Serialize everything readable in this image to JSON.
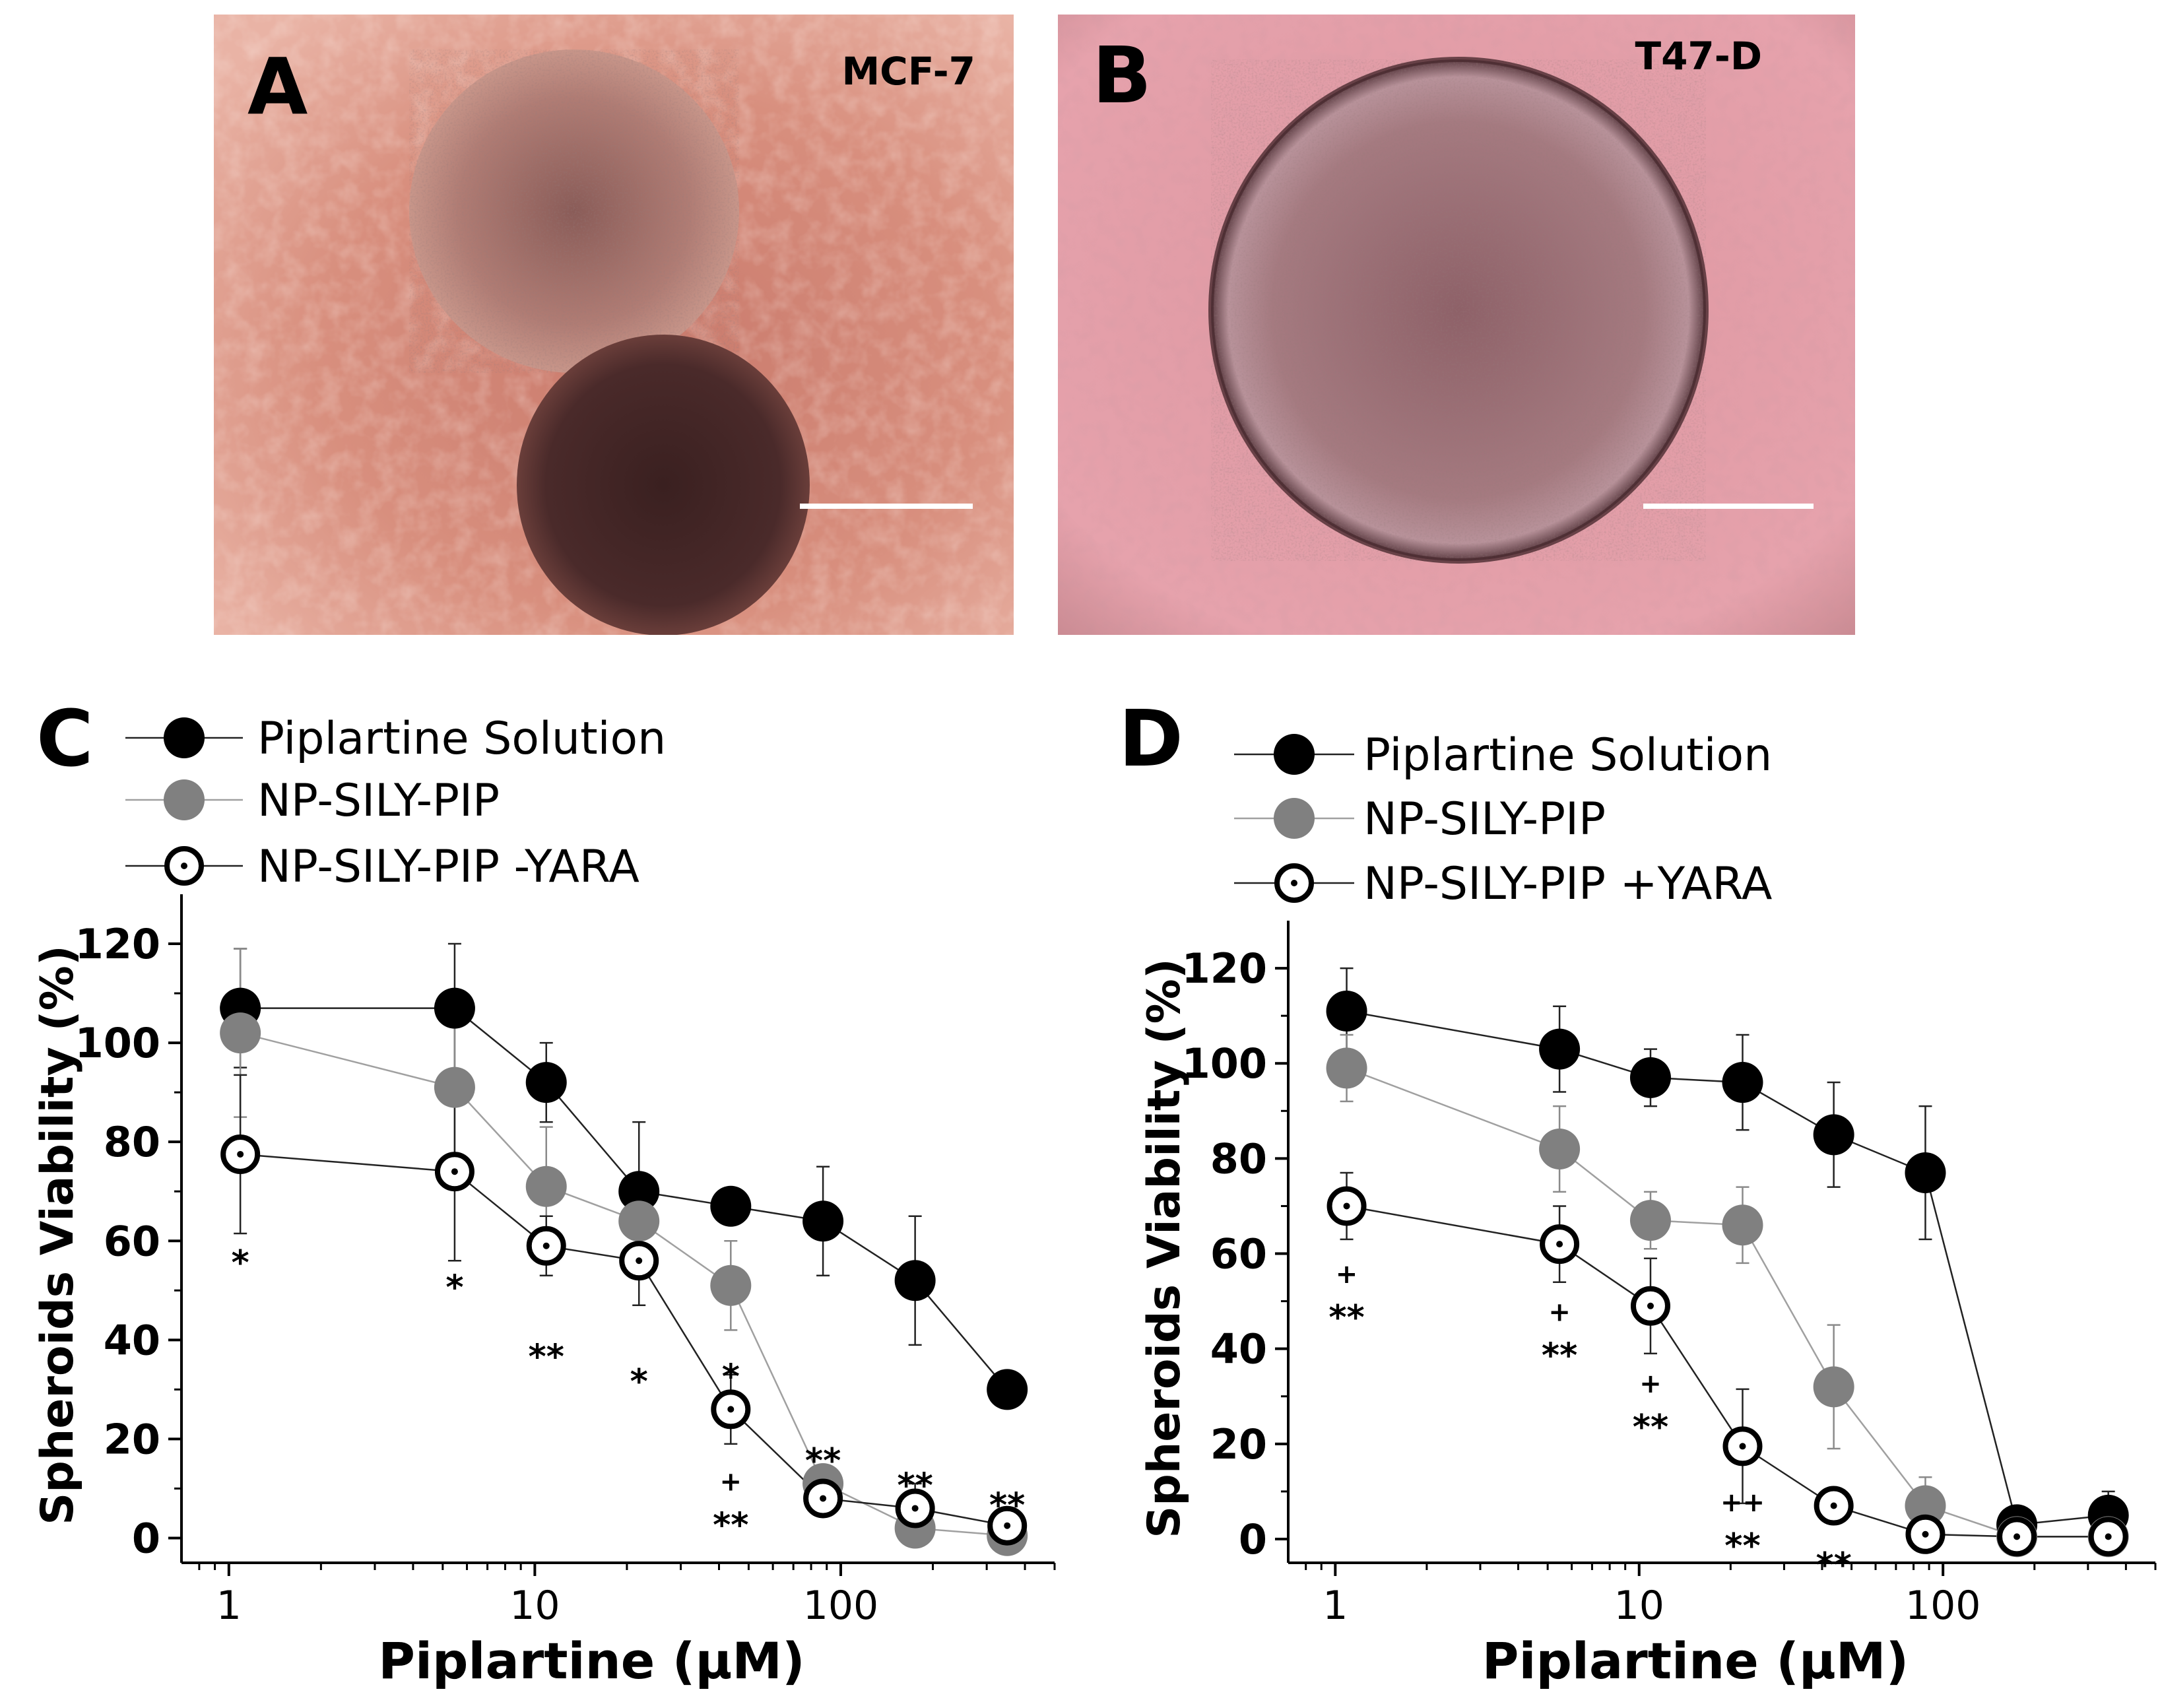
{
  "panels": {
    "A": {
      "letter": "A",
      "cell_line": "MCF-7"
    },
    "B": {
      "letter": "B",
      "cell_line": "T47-D"
    },
    "C": {
      "letter": "C"
    },
    "D": {
      "letter": "D"
    }
  },
  "colors": {
    "panel_a_bg": "#d98a78",
    "panel_a_dark": "#3e2222",
    "panel_b_bg": "#e29aa4",
    "panel_b_spheroid": "#a07880",
    "solution": "#000000",
    "np": "#808080",
    "np_yara_edge": "#000000"
  },
  "chart_data": [
    {
      "panel": "C",
      "type": "scatter",
      "xscale": "log",
      "xlabel": "Piplartine (μM)",
      "ylabel": "Spheroids Viability (%)",
      "xlim": [
        0.7,
        500
      ],
      "ylim": [
        -5,
        130
      ],
      "xticks": [
        "1",
        "10",
        "100"
      ],
      "yticks": [
        "0",
        "20",
        "40",
        "60",
        "80",
        "100",
        "120"
      ],
      "series": [
        {
          "name": "Piplartine Solution",
          "marker": "filled-black",
          "x": [
            1.09,
            5.47,
            10.9,
            21.9,
            43.7,
            87.5,
            175,
            350
          ],
          "y": [
            107,
            107,
            92,
            70,
            67,
            64,
            52,
            30
          ],
          "err": [
            12,
            13,
            8,
            14,
            0,
            11,
            13,
            0
          ]
        },
        {
          "name": "NP-SILY-PIP",
          "marker": "filled-gray",
          "x": [
            1.09,
            5.47,
            10.9,
            21.9,
            43.7,
            87.5,
            175,
            350
          ],
          "y": [
            102,
            91,
            71,
            64,
            51,
            11,
            2,
            0.5
          ],
          "err": [
            17,
            15,
            12,
            7,
            9,
            2,
            2,
            2
          ]
        },
        {
          "name": "NP-SILY-PIP -YARA",
          "marker": "open-dot",
          "x": [
            1.09,
            5.47,
            10.9,
            21.9,
            43.7,
            87.5,
            175,
            350
          ],
          "y": [
            77.5,
            74,
            59,
            56,
            26,
            8,
            6,
            2.5
          ],
          "err": [
            16,
            18,
            6,
            9,
            7,
            2,
            5,
            3
          ]
        }
      ],
      "annotations": [
        {
          "x": 1.09,
          "y": 57,
          "lines": [
            "*"
          ]
        },
        {
          "x": 5.47,
          "y": 52,
          "lines": [
            "*"
          ]
        },
        {
          "x": 10.9,
          "y": 38,
          "lines": [
            "**"
          ]
        },
        {
          "x": 21.9,
          "y": 33,
          "lines": [
            "*"
          ]
        },
        {
          "x": 43.7,
          "y": 34,
          "lines": [
            "*"
          ]
        },
        {
          "x": 43.7,
          "y": 4,
          "lines": [
            "+",
            "**"
          ]
        },
        {
          "x": 87.5,
          "y": 17,
          "lines": [
            "**"
          ]
        },
        {
          "x": 175,
          "y": 12,
          "lines": [
            "**"
          ]
        },
        {
          "x": 350,
          "y": 8,
          "lines": [
            "**"
          ]
        }
      ]
    },
    {
      "panel": "D",
      "type": "scatter",
      "xscale": "log",
      "xlabel": "Piplartine (μM)",
      "ylabel": "Spheroids Viability (%)",
      "xlim": [
        0.7,
        500
      ],
      "ylim": [
        -5,
        130
      ],
      "xticks": [
        "1",
        "10",
        "100"
      ],
      "yticks": [
        "0",
        "20",
        "40",
        "60",
        "80",
        "100",
        "120"
      ],
      "series": [
        {
          "name": "Piplartine Solution",
          "marker": "filled-black",
          "x": [
            1.09,
            5.47,
            10.9,
            21.9,
            43.7,
            87.5,
            175,
            350
          ],
          "y": [
            111,
            103,
            97,
            96,
            85,
            77,
            3,
            5
          ],
          "err": [
            9,
            9,
            6,
            10,
            11,
            14,
            0,
            5
          ]
        },
        {
          "name": "NP-SILY-PIP",
          "marker": "filled-gray",
          "x": [
            1.09,
            5.47,
            10.9,
            21.9,
            43.7,
            87.5,
            175,
            350
          ],
          "y": [
            99,
            82,
            67,
            66,
            32,
            7,
            0.5,
            0.5
          ],
          "err": [
            7,
            9,
            6,
            8,
            13,
            6,
            2,
            2
          ]
        },
        {
          "name": "NP-SILY-PIP +YARA",
          "marker": "open-dot",
          "x": [
            1.09,
            5.47,
            10.9,
            21.9,
            43.7,
            87.5,
            175,
            350
          ],
          "y": [
            70,
            62,
            49,
            19.5,
            7,
            1,
            0.5,
            0.5
          ],
          "err": [
            7,
            8,
            10,
            12,
            2,
            2,
            2,
            2
          ]
        }
      ],
      "annotations": [
        {
          "x": 1.09,
          "y": 48,
          "lines": [
            "+",
            "**"
          ]
        },
        {
          "x": 5.47,
          "y": 40,
          "lines": [
            "+",
            "**"
          ]
        },
        {
          "x": 10.9,
          "y": 25,
          "lines": [
            "+",
            "**"
          ]
        },
        {
          "x": 21.9,
          "y": 0,
          "lines": [
            "++",
            "**"
          ]
        },
        {
          "x": 43.7,
          "y": -4,
          "lines": [
            "**"
          ]
        }
      ]
    }
  ]
}
